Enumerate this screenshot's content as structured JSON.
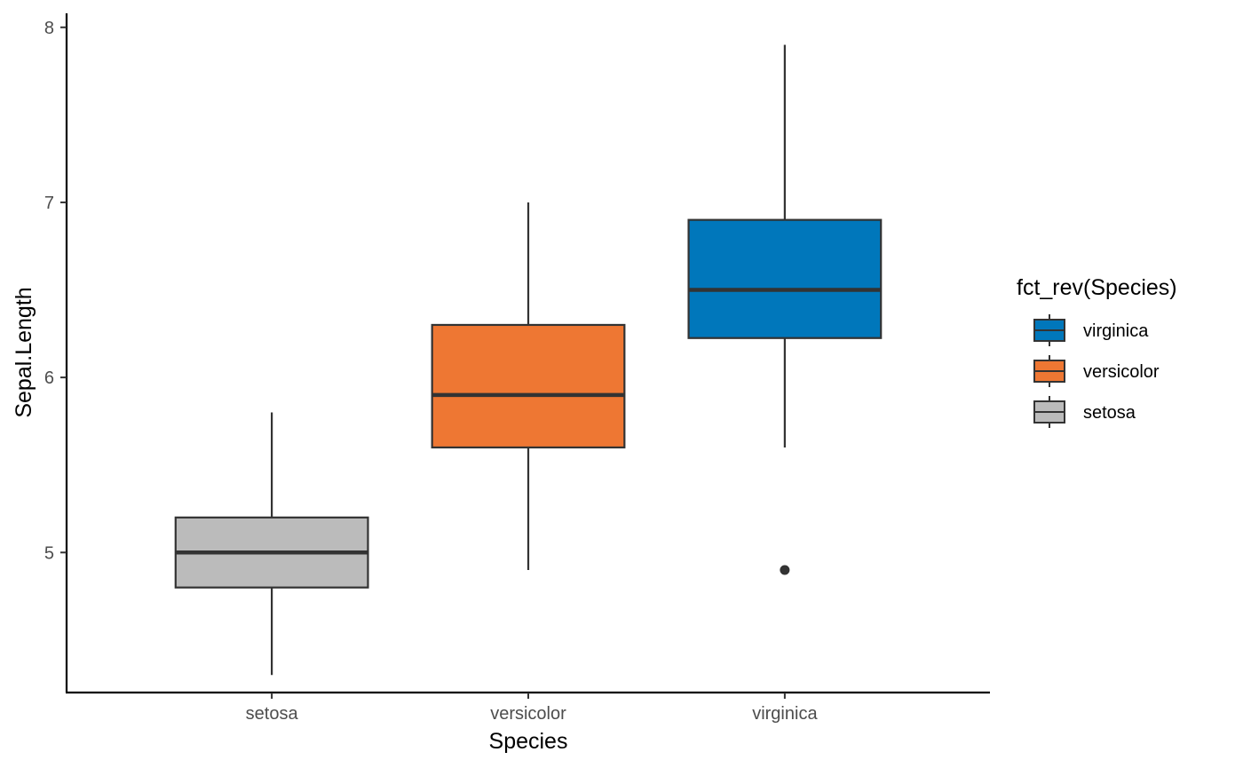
{
  "chart_data": {
    "type": "boxplot",
    "xlabel": "Species",
    "ylabel": "Sepal.Length",
    "ylim": [
      4.2,
      8.08
    ],
    "yticks": [
      5,
      6,
      7,
      8
    ],
    "grid": false,
    "legend": {
      "title": "fct_rev(Species)",
      "placement": "right",
      "order": [
        "virginica",
        "versicolor",
        "setosa"
      ]
    },
    "categories": [
      "setosa",
      "versicolor",
      "virginica"
    ],
    "series": [
      {
        "name": "setosa",
        "color": "#BBBBBB",
        "whisker_low": 4.3,
        "q1": 4.8,
        "median": 5.0,
        "q3": 5.2,
        "whisker_high": 5.8,
        "outliers": []
      },
      {
        "name": "versicolor",
        "color": "#EE7733",
        "whisker_low": 4.9,
        "q1": 5.6,
        "median": 5.9,
        "q3": 6.3,
        "whisker_high": 7.0,
        "outliers": []
      },
      {
        "name": "virginica",
        "color": "#0077BB",
        "whisker_low": 5.6,
        "q1": 6.225,
        "median": 6.5,
        "q3": 6.9,
        "whisker_high": 7.9,
        "outliers": [
          4.9
        ]
      }
    ]
  }
}
